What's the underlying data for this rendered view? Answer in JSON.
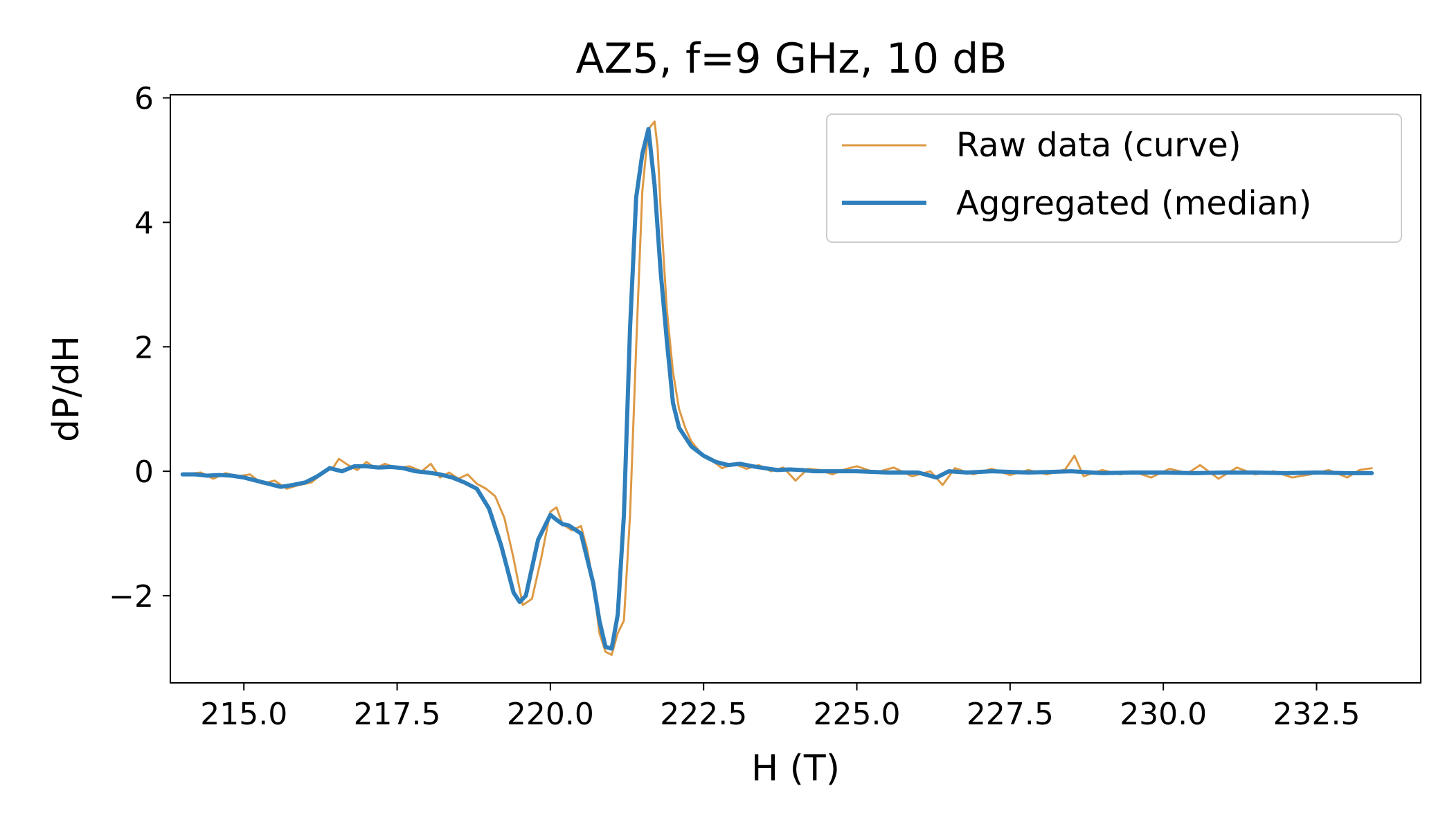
{
  "chart_data": {
    "type": "line",
    "title": "AZ5, f=9 GHz, 10 dB",
    "xlabel": "H (T)",
    "ylabel": "dP/dH",
    "xlim": [
      213.8,
      234.2
    ],
    "ylim": [
      -3.4,
      6.05
    ],
    "xticks": [
      215.0,
      217.5,
      220.0,
      222.5,
      225.0,
      227.5,
      230.0,
      232.5
    ],
    "xtick_labels": [
      "215.0",
      "217.5",
      "220.0",
      "222.5",
      "225.0",
      "227.5",
      "230.0",
      "232.5"
    ],
    "yticks": [
      -2,
      0,
      2,
      4,
      6
    ],
    "ytick_labels": [
      "−2",
      "0",
      "2",
      "4",
      "6"
    ],
    "grid": false,
    "legend_position": "top-right",
    "series": [
      {
        "name": "Raw data (curve)",
        "color": "#dd9944",
        "linewidth": "thin",
        "x": [
          214.0,
          214.3,
          214.5,
          214.7,
          214.9,
          215.1,
          215.3,
          215.5,
          215.7,
          215.9,
          216.1,
          216.3,
          216.45,
          216.55,
          216.7,
          216.85,
          217.0,
          217.15,
          217.3,
          217.5,
          217.7,
          217.9,
          218.05,
          218.2,
          218.35,
          218.5,
          218.65,
          218.8,
          218.95,
          219.1,
          219.25,
          219.4,
          219.55,
          219.7,
          219.85,
          220.0,
          220.1,
          220.2,
          220.35,
          220.5,
          220.6,
          220.7,
          220.8,
          220.9,
          221.0,
          221.1,
          221.2,
          221.3,
          221.4,
          221.5,
          221.6,
          221.7,
          221.75,
          221.8,
          221.9,
          222.0,
          222.1,
          222.2,
          222.3,
          222.45,
          222.6,
          222.8,
          223.0,
          223.2,
          223.4,
          223.6,
          223.8,
          224.0,
          224.2,
          224.4,
          224.6,
          224.8,
          225.0,
          225.3,
          225.6,
          225.9,
          226.2,
          226.4,
          226.6,
          226.9,
          227.2,
          227.5,
          227.8,
          228.1,
          228.4,
          228.55,
          228.7,
          229.0,
          229.3,
          229.5,
          229.8,
          230.1,
          230.4,
          230.6,
          230.9,
          231.2,
          231.5,
          231.8,
          232.1,
          232.4,
          232.7,
          233.0,
          233.2,
          233.4
        ],
        "y": [
          -0.05,
          -0.02,
          -0.12,
          -0.03,
          -0.08,
          -0.05,
          -0.2,
          -0.15,
          -0.28,
          -0.22,
          -0.18,
          -0.02,
          0.05,
          0.2,
          0.1,
          0.02,
          0.15,
          0.05,
          0.12,
          0.05,
          0.08,
          0.0,
          0.12,
          -0.1,
          -0.02,
          -0.12,
          -0.05,
          -0.2,
          -0.28,
          -0.4,
          -0.75,
          -1.4,
          -2.15,
          -2.05,
          -1.4,
          -0.65,
          -0.58,
          -0.85,
          -0.95,
          -0.88,
          -1.25,
          -1.8,
          -2.6,
          -2.9,
          -2.95,
          -2.6,
          -2.4,
          -0.7,
          2.0,
          4.5,
          5.5,
          5.62,
          5.2,
          4.2,
          2.6,
          1.6,
          1.0,
          0.7,
          0.48,
          0.3,
          0.2,
          0.05,
          0.12,
          0.04,
          0.1,
          0.0,
          0.06,
          -0.15,
          0.04,
          0.02,
          -0.05,
          0.03,
          0.08,
          -0.02,
          0.06,
          -0.08,
          0.0,
          -0.22,
          0.05,
          -0.05,
          0.04,
          -0.06,
          0.02,
          -0.05,
          0.03,
          0.25,
          -0.08,
          0.02,
          -0.05,
          0.0,
          -0.1,
          0.04,
          -0.03,
          0.1,
          -0.12,
          0.06,
          -0.05,
          0.0,
          -0.1,
          -0.05,
          0.02,
          -0.1,
          0.02,
          0.05
        ]
      },
      {
        "name": "Aggregated (median)",
        "color": "#2e7fbb",
        "linewidth": "thick",
        "x": [
          214.0,
          214.2,
          214.4,
          214.6,
          214.8,
          215.0,
          215.2,
          215.4,
          215.6,
          215.8,
          216.0,
          216.2,
          216.4,
          216.6,
          216.8,
          217.0,
          217.2,
          217.4,
          217.6,
          217.8,
          218.0,
          218.2,
          218.4,
          218.6,
          218.8,
          219.0,
          219.2,
          219.4,
          219.5,
          219.6,
          219.8,
          220.0,
          220.1,
          220.2,
          220.3,
          220.5,
          220.7,
          220.8,
          220.9,
          221.0,
          221.1,
          221.2,
          221.3,
          221.4,
          221.5,
          221.6,
          221.7,
          221.8,
          221.9,
          222.0,
          222.1,
          222.2,
          222.3,
          222.5,
          222.7,
          222.9,
          223.1,
          223.3,
          223.5,
          223.7,
          223.9,
          224.1,
          224.3,
          224.6,
          225.0,
          225.5,
          226.0,
          226.3,
          226.5,
          226.8,
          227.2,
          227.8,
          228.5,
          229.0,
          229.5,
          230.0,
          230.5,
          231.0,
          231.5,
          232.0,
          232.5,
          233.0,
          233.4
        ],
        "y": [
          -0.05,
          -0.05,
          -0.07,
          -0.06,
          -0.07,
          -0.1,
          -0.15,
          -0.2,
          -0.25,
          -0.22,
          -0.18,
          -0.08,
          0.05,
          0.0,
          0.08,
          0.08,
          0.06,
          0.07,
          0.05,
          0.0,
          -0.02,
          -0.05,
          -0.1,
          -0.18,
          -0.28,
          -0.6,
          -1.2,
          -1.95,
          -2.1,
          -2.0,
          -1.1,
          -0.7,
          -0.78,
          -0.85,
          -0.87,
          -1.0,
          -1.8,
          -2.4,
          -2.82,
          -2.85,
          -2.3,
          -0.7,
          2.3,
          4.4,
          5.1,
          5.5,
          4.6,
          3.2,
          2.1,
          1.1,
          0.7,
          0.55,
          0.4,
          0.25,
          0.15,
          0.1,
          0.12,
          0.08,
          0.05,
          0.02,
          0.03,
          0.02,
          0.0,
          0.0,
          0.0,
          -0.02,
          -0.02,
          -0.1,
          0.0,
          -0.02,
          0.0,
          -0.02,
          0.0,
          -0.03,
          -0.02,
          -0.02,
          -0.03,
          -0.02,
          -0.02,
          -0.03,
          -0.02,
          -0.03,
          -0.03
        ]
      }
    ]
  }
}
